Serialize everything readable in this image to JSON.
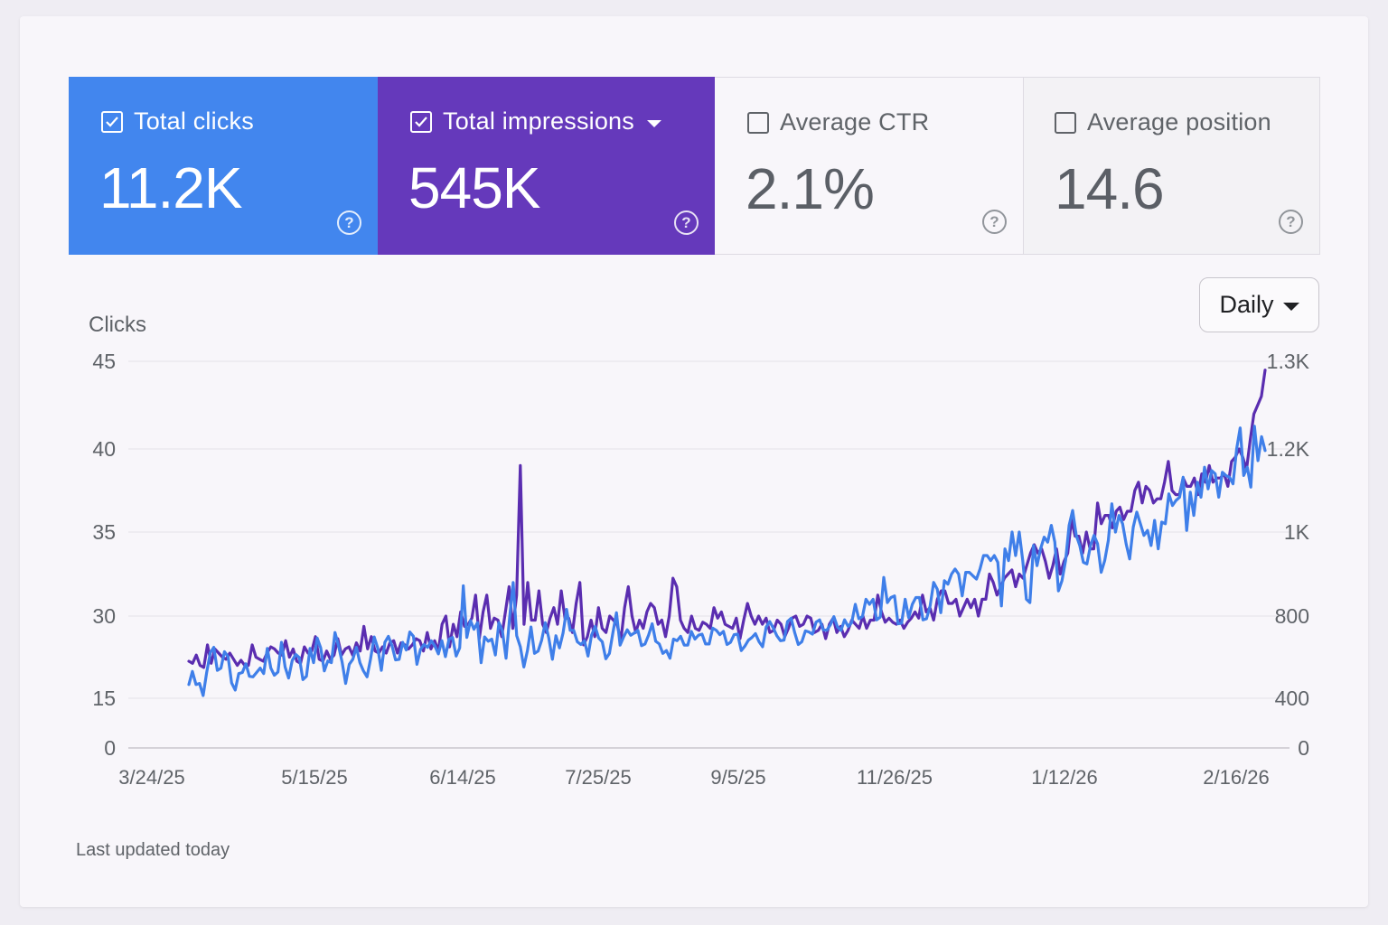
{
  "metrics": {
    "clicks": {
      "label": "Total clicks",
      "value": "11.2K",
      "checked": true,
      "color": "#4286ee"
    },
    "impressions": {
      "label": "Total impressions",
      "value": "545K",
      "checked": true,
      "color": "#6539bb"
    },
    "ctr": {
      "label": "Average CTR",
      "value": "2.1%",
      "checked": false
    },
    "position": {
      "label": "Average position",
      "value": "14.6",
      "checked": false
    },
    "help_glyph": "?"
  },
  "controls": {
    "granularity": "Daily"
  },
  "footer": {
    "updated": "Last updated today"
  },
  "chart_data": {
    "type": "line",
    "ylabel": "Clicks",
    "grid": true,
    "left_ticks": [
      "45",
      "40",
      "35",
      "30",
      "15",
      "0"
    ],
    "right_ticks": [
      "1.3K",
      "1.2K",
      "1K",
      "800",
      "400",
      "0"
    ],
    "x_ticks": [
      "3/24/25",
      "5/15/25",
      "6/14/25",
      "7/25/25",
      "9/5/25",
      "11/26/25",
      "1/12/26",
      "2/16/26"
    ],
    "series": [
      {
        "name": "Total clicks",
        "axis": "left",
        "color": "#3f7fe9",
        "values": [
          17.5,
          19.9,
          17.5,
          17.7,
          15.5,
          19.7,
          23.3,
          24.3,
          20.1,
          20.5,
          23.5,
          22.6,
          17.8,
          16.5,
          19.5,
          19.7,
          21.3,
          19.0,
          18.9,
          19.7,
          20.5,
          19.5,
          24.1,
          20.5,
          19.2,
          19.8,
          25.2,
          20.7,
          18.7,
          21.9,
          23.0,
          22.4,
          18.4,
          19.0,
          24.1,
          21.5,
          26.0,
          24.2,
          20.0,
          21.8,
          21.5,
          27.0,
          24.6,
          21.6,
          17.7,
          21.2,
          22.1,
          24.3,
          21.5,
          20.0,
          18.9,
          22.2,
          26.2,
          24.2,
          20.1,
          25.2,
          26.3,
          24.6,
          22.0,
          22.1,
          25.2,
          23.8,
          27.1,
          26.3,
          21.2,
          23.9,
          24.8,
          24.3,
          25.5,
          24.6,
          23.1,
          25.5,
          22.6,
          25.8,
          26.1,
          22.7,
          24.2,
          31.8,
          26.1,
          29.2,
          27.6,
          28.8,
          21.5,
          26.2,
          25.4,
          25.8,
          22.9,
          28.8,
          27.3,
          22.3,
          29.6,
          32.0,
          26.4,
          24.4,
          20.7,
          23.7,
          28.0,
          23.2,
          23.6,
          25.6,
          28.8,
          26.0,
          22.1,
          26.4,
          24.2,
          26.9,
          30.4,
          27.4,
          27.4,
          25.3,
          24.8,
          25.5,
          22.7,
          26.5,
          28.1,
          26.0,
          25.3,
          22.2,
          23.2,
          27.0,
          30.2,
          24.7,
          26.2,
          27.5,
          26.5,
          26.9,
          27.4,
          24.6,
          24.9,
          26.5,
          28.6,
          25.4,
          24.9,
          23.2,
          23.7,
          22.3,
          25.8,
          25.5,
          26.3,
          24.7,
          24.7,
          27.2,
          25.8,
          26.5,
          26.7,
          24.9,
          24.9,
          27.8,
          27.4,
          26.6,
          27.2,
          24.8,
          25.2,
          26.6,
          26.7,
          23.7,
          24.5,
          25.6,
          26.1,
          26.8,
          25.3,
          24.4,
          28.0,
          29.0,
          27.8,
          26.4,
          25.5,
          25.6,
          29.0,
          29.6,
          27.0,
          24.8,
          25.3,
          27.3,
          27.1,
          26.7,
          28.9,
          29.3,
          27.5,
          27.4,
          28.4,
          29.9,
          28.0,
          27.4,
          29.3,
          28.1,
          28.8,
          30.7,
          29.5,
          29.9,
          31.0,
          30.7,
          31.0,
          29.3,
          29.8,
          32.3,
          30.8,
          31.1,
          31.2,
          28.6,
          28.7,
          31.0,
          29.7,
          30.7,
          31.1,
          31.1,
          29.3,
          29.5,
          30.6,
          32.0,
          31.6,
          30.2,
          32.1,
          31.9,
          32.5,
          32.8,
          32.5,
          31.2,
          32.6,
          32.6,
          32.4,
          32.2,
          32.8,
          33.6,
          33.6,
          33.3,
          33.6,
          33.2,
          30.6,
          34.0,
          33.3,
          35.0,
          33.6,
          35.0,
          33.3,
          31.0,
          30.8,
          34.2,
          33.0,
          34.0,
          34.7,
          34.4,
          35.4,
          34.4,
          31.5,
          32.1,
          33.3,
          35.4,
          36.3,
          34.8,
          34.2,
          33.2,
          33.1,
          34.2,
          34.8,
          34.3,
          32.6,
          33.3,
          34.5,
          36.7,
          35.0,
          36.0,
          35.5,
          34.3,
          33.4,
          35.3,
          36.2,
          35.5,
          34.8,
          35.1,
          34.2,
          35.7,
          34.0,
          35.6,
          35.5,
          37.3,
          36.6,
          36.9,
          37.1,
          38.3,
          35.1,
          37.4,
          36.0,
          38.0,
          37.1,
          38.9,
          37.6,
          38.7,
          38.5,
          37.1,
          38.6,
          38.4,
          38.3,
          37.9,
          40.0,
          41.2,
          38.4,
          38.9,
          37.7,
          41.3,
          39.3,
          40.7,
          39.9
        ]
      },
      {
        "name": "Total impressions",
        "axis": "right",
        "color": "#5a2db0",
        "values": [
          580,
          570,
          610,
          560,
          550,
          660,
          570,
          640,
          620,
          600,
          590,
          620,
          590,
          560,
          585,
          560,
          560,
          660,
          600,
          590,
          580,
          620,
          650,
          640,
          620,
          610,
          680,
          600,
          640,
          580,
          570,
          650,
          620,
          630,
          700,
          590,
          580,
          630,
          590,
          610,
          690,
          610,
          640,
          650,
          610,
          670,
          630,
          750,
          640,
          700,
          630,
          620,
          650,
          620,
          670,
          680,
          620,
          670,
          660,
          640,
          660,
          690,
          680,
          630,
          720,
          640,
          680,
          630,
          760,
          800,
          650,
          760,
          700,
          810,
          750,
          760,
          790,
          850,
          690,
          810,
          850,
          740,
          790,
          780,
          700,
          810,
          870,
          740,
          850,
          1160,
          760,
          880,
          780,
          780,
          860,
          760,
          720,
          790,
          820,
          760,
          860,
          790,
          790,
          720,
          830,
          880,
          660,
          700,
          780,
          700,
          820,
          740,
          720,
          800,
          780,
          760,
          680,
          820,
          870,
          800,
          720,
          780,
          740,
          810,
          830,
          820,
          760,
          780,
          700,
          800,
          890,
          870,
          780,
          740,
          720,
          800,
          740,
          730,
          770,
          760,
          740,
          820,
          790,
          810,
          760,
          750,
          740,
          790,
          690,
          780,
          830,
          800,
          760,
          800,
          760,
          790,
          720,
          730,
          780,
          760,
          700,
          740,
          790,
          800,
          750,
          760,
          800,
          790,
          720,
          730,
          760,
          690,
          760,
          790,
          720,
          750,
          700,
          730,
          780,
          760,
          740,
          800,
          740,
          780,
          780,
          850,
          810,
          770,
          790,
          770,
          760,
          780,
          740,
          770,
          790,
          810,
          790,
          850,
          810,
          820,
          780,
          840,
          860,
          860,
          830,
          830,
          840,
          800,
          820,
          840,
          820,
          840,
          800,
          840,
          840,
          900,
          880,
          850,
          870,
          890,
          900,
          910,
          870,
          900,
          890,
          920,
          950,
          970,
          950,
          960,
          930,
          890,
          920,
          960,
          900,
          930,
          950,
          1030,
          990,
          990,
          950,
          1000,
          960,
          960,
          1070,
          1020,
          1040,
          1040,
          1010,
          1050,
          1060,
          1030,
          1050,
          1050,
          1100,
          1120,
          1070,
          1110,
          1100,
          1070,
          1080,
          1080,
          1120,
          1170,
          1100,
          1090,
          1090,
          1130,
          1110,
          1110,
          1130,
          1090,
          1140,
          1120,
          1160,
          1120,
          1130,
          1130,
          1140,
          1110,
          1170,
          1180,
          1200,
          1180,
          1150,
          1210,
          1240,
          1250,
          1260,
          1290
        ]
      }
    ]
  }
}
